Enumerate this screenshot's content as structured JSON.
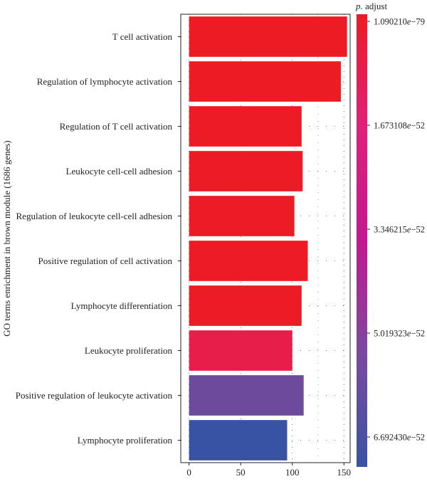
{
  "chart_data": {
    "type": "bar",
    "orientation": "horizontal",
    "title": "",
    "ylabel": "GO terms enrichment in brown module (1686 genes)",
    "xlabel": "",
    "xlim": [
      -8,
      156
    ],
    "xticks": [
      0,
      50,
      100,
      150
    ],
    "tick_labels": [
      "0",
      "50",
      "100",
      "150"
    ],
    "grid": true,
    "categories": [
      "T cell activation",
      "Regulation of lymphocyte activation",
      "Regulation of T cell activation",
      "Leukocyte cell-cell adhesion",
      "Regulation of leukocyte cell-cell adhesion",
      "Positive regulation of cell activation",
      "Lymphocyte differentiation",
      "Leukocyte proliferation",
      "Positive regulation of leukocyte activation",
      "Lymphocyte proliferation"
    ],
    "values": [
      153,
      147,
      109,
      110,
      102,
      115,
      109,
      100,
      111,
      95
    ],
    "bar_colors": [
      "#ec1c24",
      "#ec1c25",
      "#ec1c26",
      "#ec1c26",
      "#ec1c26",
      "#ec1c26",
      "#ec1c27",
      "#e81e4a",
      "#6e4a9c",
      "#3953a4"
    ],
    "legend": {
      "title_prefix": "p.",
      "title_suffix": " adjust",
      "labels": [
        "1.090210e−79",
        "1.673108e−52",
        "3.346215e−52",
        "5.019323e−52",
        "6.692430e−52"
      ],
      "label_stops": [
        0.0,
        0.25,
        0.5,
        0.75,
        1.0
      ],
      "gradient": [
        "#ed1c24",
        "#e0207a",
        "#c21990",
        "#7a4a9e",
        "#3953a4"
      ],
      "gradient_stops": [
        0.0,
        0.25,
        0.5,
        0.75,
        1.0
      ]
    }
  }
}
